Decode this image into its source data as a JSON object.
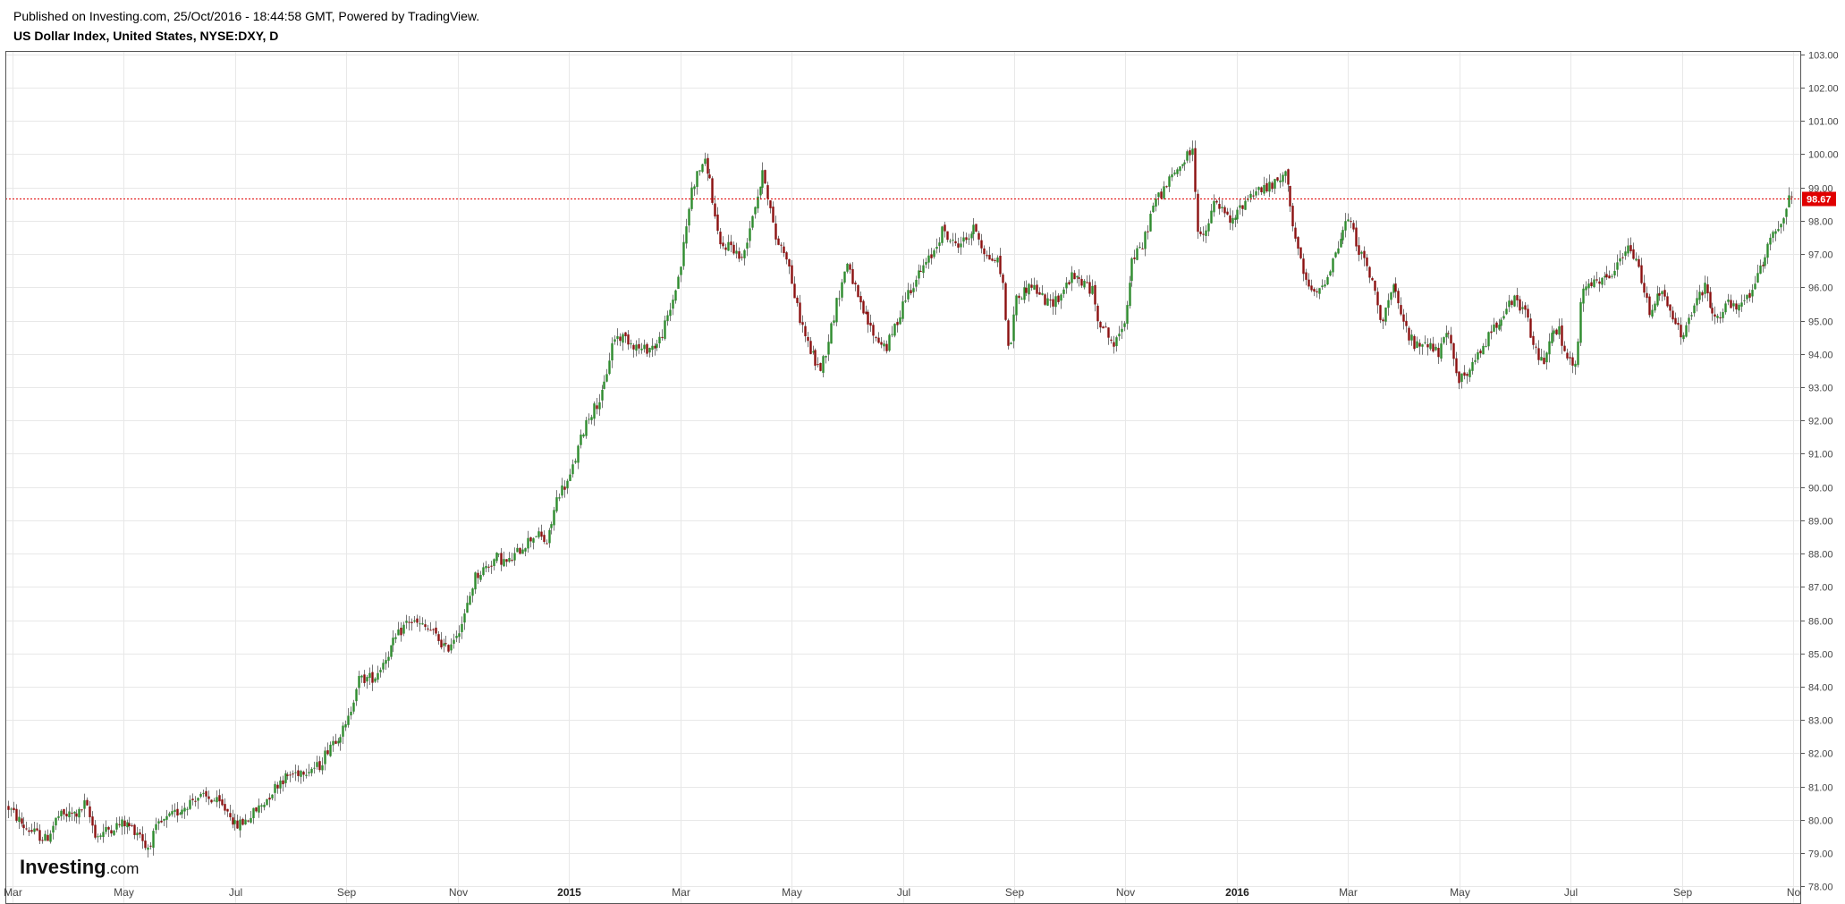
{
  "header": {
    "published": "Published on Investing.com, 25/Oct/2016 - 18:44:58 GMT, Powered by TradingView.",
    "title": "US Dollar Index, United States, NYSE:DXY, D"
  },
  "brand": {
    "name": "Investing",
    "suffix": ".com"
  },
  "colors": {
    "up": "#2e8b2e",
    "down": "#8b1010",
    "grid": "#e8e8e8",
    "last_price_line": "#e00000",
    "last_price_tag": "#e00000"
  },
  "chart_data": {
    "type": "candlestick",
    "title": "US Dollar Index, United States, NYSE:DXY, D",
    "ylim": [
      77.5,
      103.1
    ],
    "y_ticks": [
      "78.00",
      "79.00",
      "80.00",
      "81.00",
      "82.00",
      "83.00",
      "84.00",
      "85.00",
      "86.00",
      "87.00",
      "88.00",
      "89.00",
      "90.00",
      "91.00",
      "92.00",
      "93.00",
      "94.00",
      "95.00",
      "96.00",
      "97.00",
      "98.00",
      "99.00",
      "100.00",
      "101.00",
      "102.00",
      "103.00"
    ],
    "x_ticks": [
      {
        "label": "Mar",
        "pos": 0.0,
        "bold": false
      },
      {
        "label": "May",
        "pos": 2.0,
        "bold": false
      },
      {
        "label": "Jul",
        "pos": 4.0,
        "bold": false
      },
      {
        "label": "Sep",
        "pos": 6.0,
        "bold": false
      },
      {
        "label": "Nov",
        "pos": 8.0,
        "bold": false
      },
      {
        "label": "2015",
        "pos": 10.0,
        "bold": true
      },
      {
        "label": "Mar",
        "pos": 12.0,
        "bold": false
      },
      {
        "label": "May",
        "pos": 14.0,
        "bold": false
      },
      {
        "label": "Jul",
        "pos": 16.0,
        "bold": false
      },
      {
        "label": "Sep",
        "pos": 18.0,
        "bold": false
      },
      {
        "label": "Nov",
        "pos": 20.0,
        "bold": false
      },
      {
        "label": "2016",
        "pos": 22.0,
        "bold": true
      },
      {
        "label": "Mar",
        "pos": 24.0,
        "bold": false
      },
      {
        "label": "May",
        "pos": 26.0,
        "bold": false
      },
      {
        "label": "Jul",
        "pos": 28.0,
        "bold": false
      },
      {
        "label": "Sep",
        "pos": 30.0,
        "bold": false
      },
      {
        "label": "No",
        "pos": 32.0,
        "bold": false
      }
    ],
    "x_range": [
      0.0,
      32.0
    ],
    "grid": true,
    "last_price": 98.67,
    "last_price_label": "98.67",
    "price_path": [
      [
        -0.1,
        80.4
      ],
      [
        0.2,
        79.8
      ],
      [
        0.6,
        79.4
      ],
      [
        0.8,
        80.1
      ],
      [
        1.2,
        80.2
      ],
      [
        1.3,
        80.5
      ],
      [
        1.5,
        79.5
      ],
      [
        1.8,
        79.8
      ],
      [
        2.0,
        79.9
      ],
      [
        2.3,
        79.6
      ],
      [
        2.4,
        79.1
      ],
      [
        2.6,
        79.8
      ],
      [
        3.0,
        80.3
      ],
      [
        3.3,
        80.7
      ],
      [
        3.6,
        80.6
      ],
      [
        3.9,
        80.2
      ],
      [
        4.0,
        79.8
      ],
      [
        4.2,
        80.0
      ],
      [
        4.5,
        80.5
      ],
      [
        4.8,
        81.2
      ],
      [
        5.2,
        81.5
      ],
      [
        5.5,
        81.6
      ],
      [
        5.7,
        82.3
      ],
      [
        6.0,
        82.8
      ],
      [
        6.2,
        84.2
      ],
      [
        6.5,
        84.3
      ],
      [
        6.8,
        85.2
      ],
      [
        7.1,
        86.0
      ],
      [
        7.5,
        85.7
      ],
      [
        7.8,
        85.1
      ],
      [
        8.1,
        86.0
      ],
      [
        8.3,
        87.3
      ],
      [
        8.7,
        87.9
      ],
      [
        8.9,
        87.7
      ],
      [
        9.2,
        88.3
      ],
      [
        9.4,
        88.6
      ],
      [
        9.6,
        88.3
      ],
      [
        9.8,
        89.8
      ],
      [
        10.0,
        90.2
      ],
      [
        10.3,
        92.0
      ],
      [
        10.6,
        92.8
      ],
      [
        10.8,
        94.5
      ],
      [
        11.0,
        94.5
      ],
      [
        11.3,
        94.1
      ],
      [
        11.6,
        94.3
      ],
      [
        11.8,
        95.2
      ],
      [
        12.0,
        96.6
      ],
      [
        12.2,
        99.0
      ],
      [
        12.4,
        99.8
      ],
      [
        12.5,
        99.5
      ],
      [
        12.7,
        97.2
      ],
      [
        12.9,
        97.3
      ],
      [
        13.1,
        96.8
      ],
      [
        13.3,
        98.3
      ],
      [
        13.5,
        99.5
      ],
      [
        13.7,
        97.5
      ],
      [
        13.9,
        97.0
      ],
      [
        14.1,
        95.3
      ],
      [
        14.3,
        94.2
      ],
      [
        14.5,
        93.5
      ],
      [
        14.6,
        94.0
      ],
      [
        14.8,
        95.5
      ],
      [
        15.0,
        96.8
      ],
      [
        15.2,
        95.5
      ],
      [
        15.5,
        94.5
      ],
      [
        15.7,
        94.2
      ],
      [
        15.9,
        95.0
      ],
      [
        16.0,
        95.6
      ],
      [
        16.2,
        96.2
      ],
      [
        16.5,
        96.9
      ],
      [
        16.7,
        97.7
      ],
      [
        16.9,
        97.3
      ],
      [
        17.1,
        97.4
      ],
      [
        17.3,
        97.8
      ],
      [
        17.5,
        96.9
      ],
      [
        17.7,
        96.8
      ],
      [
        17.8,
        96.0
      ],
      [
        17.9,
        93.8
      ],
      [
        18.0,
        95.6
      ],
      [
        18.3,
        96.1
      ],
      [
        18.6,
        95.5
      ],
      [
        18.8,
        95.7
      ],
      [
        19.0,
        96.3
      ],
      [
        19.2,
        96.2
      ],
      [
        19.4,
        95.9
      ],
      [
        19.5,
        95.1
      ],
      [
        19.7,
        94.5
      ],
      [
        19.8,
        94.2
      ],
      [
        20.0,
        95.2
      ],
      [
        20.1,
        96.8
      ],
      [
        20.3,
        97.2
      ],
      [
        20.5,
        98.5
      ],
      [
        20.7,
        99.0
      ],
      [
        20.9,
        99.5
      ],
      [
        21.1,
        99.9
      ],
      [
        21.2,
        100.2
      ],
      [
        21.3,
        97.8
      ],
      [
        21.4,
        97.4
      ],
      [
        21.6,
        98.6
      ],
      [
        21.9,
        97.9
      ],
      [
        22.1,
        98.5
      ],
      [
        22.3,
        98.9
      ],
      [
        22.6,
        99.0
      ],
      [
        22.9,
        99.4
      ],
      [
        23.0,
        97.9
      ],
      [
        23.2,
        96.3
      ],
      [
        23.4,
        95.7
      ],
      [
        23.6,
        96.3
      ],
      [
        23.8,
        97.2
      ],
      [
        24.0,
        98.1
      ],
      [
        24.2,
        97.1
      ],
      [
        24.4,
        96.3
      ],
      [
        24.6,
        95.0
      ],
      [
        24.8,
        96.0
      ],
      [
        25.0,
        94.9
      ],
      [
        25.2,
        94.2
      ],
      [
        25.4,
        94.4
      ],
      [
        25.6,
        94.0
      ],
      [
        25.8,
        94.6
      ],
      [
        26.0,
        93.2
      ],
      [
        26.2,
        93.5
      ],
      [
        26.5,
        94.5
      ],
      [
        26.8,
        95.3
      ],
      [
        27.0,
        95.6
      ],
      [
        27.2,
        95.2
      ],
      [
        27.3,
        94.3
      ],
      [
        27.5,
        93.7
      ],
      [
        27.6,
        94.5
      ],
      [
        27.8,
        94.7
      ],
      [
        27.9,
        93.9
      ],
      [
        28.1,
        93.6
      ],
      [
        28.2,
        96.0
      ],
      [
        28.5,
        96.1
      ],
      [
        28.8,
        96.5
      ],
      [
        29.0,
        97.2
      ],
      [
        29.2,
        96.7
      ],
      [
        29.4,
        95.3
      ],
      [
        29.6,
        95.9
      ],
      [
        29.8,
        95.2
      ],
      [
        30.0,
        94.5
      ],
      [
        30.2,
        95.4
      ],
      [
        30.4,
        96.0
      ],
      [
        30.6,
        95.0
      ],
      [
        30.8,
        95.5
      ],
      [
        31.0,
        95.3
      ],
      [
        31.2,
        95.8
      ],
      [
        31.4,
        96.5
      ],
      [
        31.6,
        97.6
      ],
      [
        31.8,
        98.0
      ],
      [
        31.9,
        98.6
      ],
      [
        32.0,
        98.7
      ]
    ]
  }
}
